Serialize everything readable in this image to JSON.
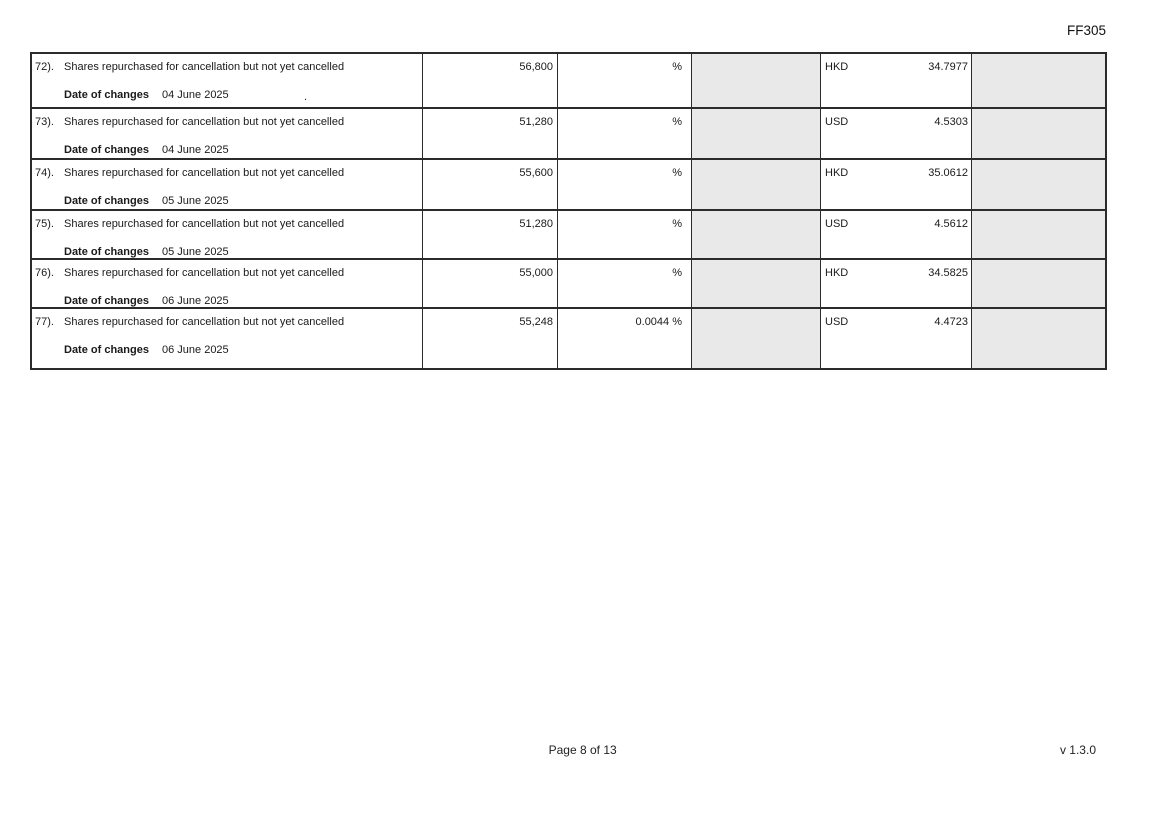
{
  "page": {
    "form_code": "FF305",
    "footer_page": "Page 8 of 13",
    "footer_version": "v 1.3.0"
  },
  "colors": {
    "shaded_cell": "#e9e9e9",
    "border": "#2b2b2b",
    "background": "#ffffff"
  },
  "table": {
    "rows": [
      {
        "index": "72).",
        "description": "Shares repurchased for cancellation but not yet cancelled",
        "date_label": "Date of changes",
        "date": "04 June 2025",
        "stray_mark": ".",
        "shares": "56,800",
        "percent": "%",
        "currency": "HKD",
        "price": "34.7977"
      },
      {
        "index": "73).",
        "description": "Shares repurchased for cancellation but not yet cancelled",
        "date_label": "Date of changes",
        "date": "04 June 2025",
        "shares": "51,280",
        "percent": "%",
        "currency": "USD",
        "price": "4.5303"
      },
      {
        "index": "74).",
        "description": "Shares repurchased for cancellation but not yet cancelled",
        "date_label": "Date of changes",
        "date": "05 June 2025",
        "shares": "55,600",
        "percent": "%",
        "currency": "HKD",
        "price": "35.0612"
      },
      {
        "index": "75).",
        "description": "Shares repurchased for cancellation but not yet cancelled",
        "date_label": "Date of changes",
        "date": "05 June 2025",
        "shares": "51,280",
        "percent": "%",
        "currency": "USD",
        "price": "4.5612"
      },
      {
        "index": "76).",
        "description": "Shares repurchased for cancellation but not yet cancelled",
        "date_label": "Date of changes",
        "date": "06 June 2025",
        "shares": "55,000",
        "percent": "%",
        "currency": "HKD",
        "price": "34.5825"
      },
      {
        "index": "77).",
        "description": "Shares repurchased for cancellation but not yet cancelled",
        "date_label": "Date of changes",
        "date": "06 June 2025",
        "shares": "55,248",
        "percent": "0.0044 %",
        "currency": "USD",
        "price": "4.4723"
      }
    ]
  }
}
